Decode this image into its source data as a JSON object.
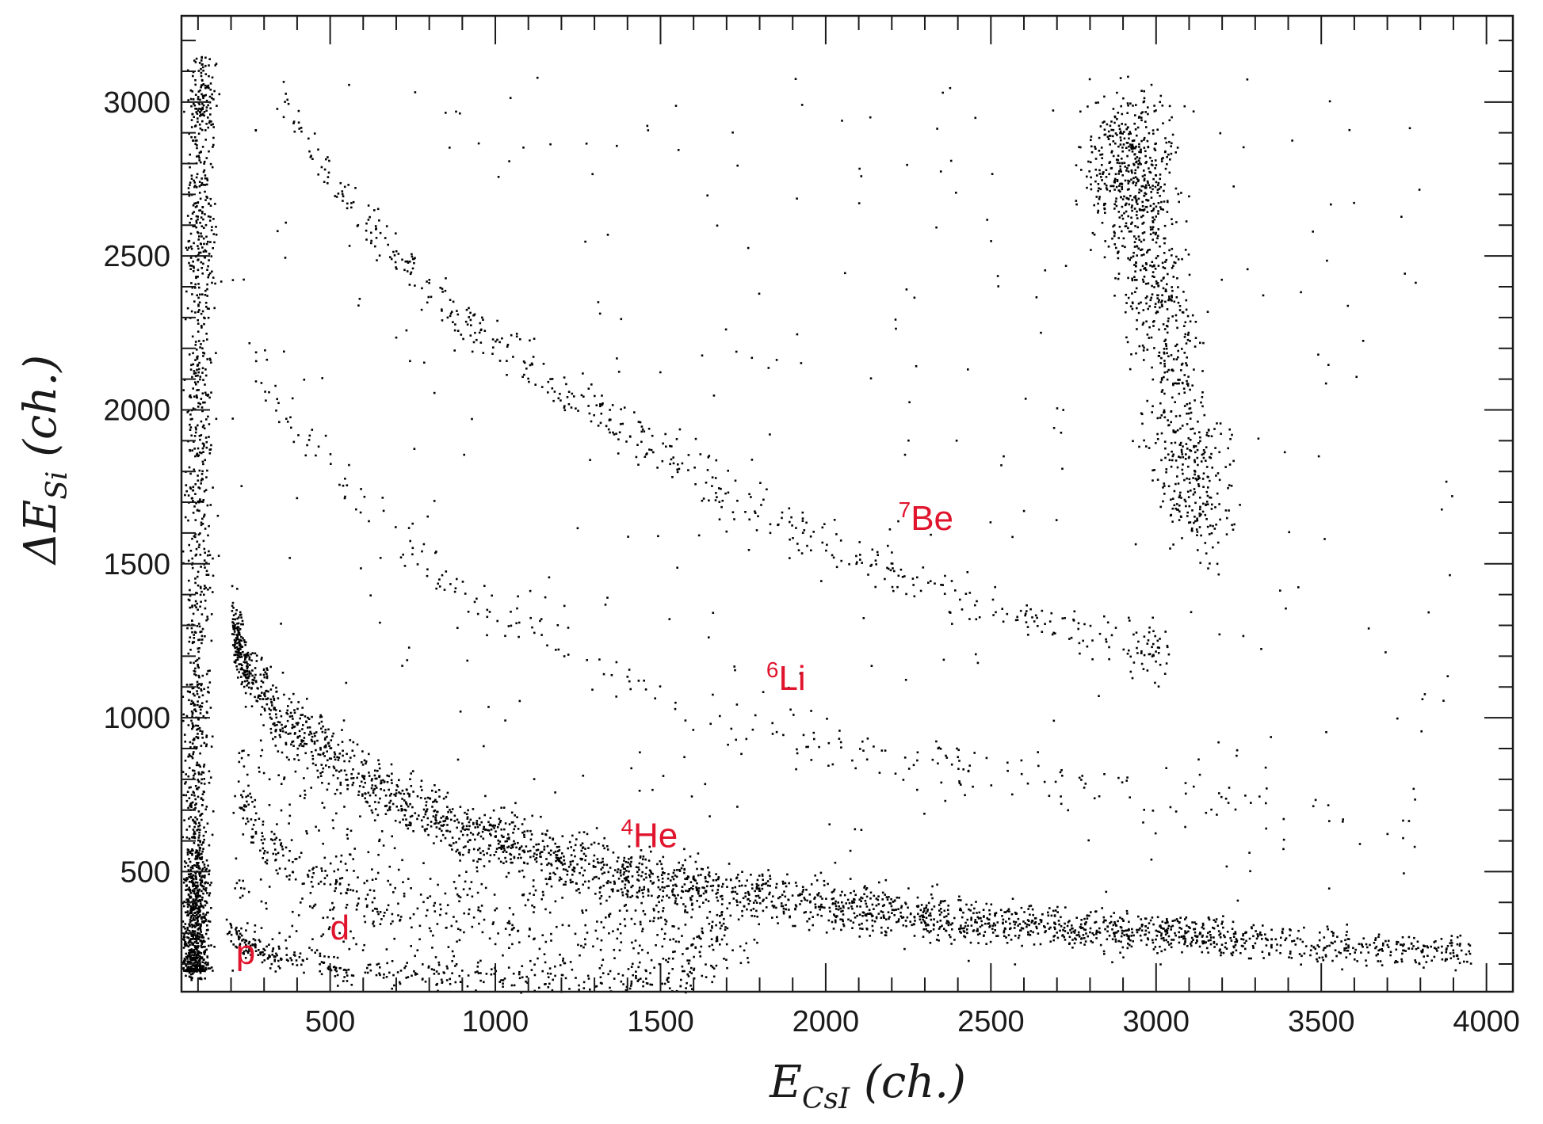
{
  "chart_data": {
    "type": "scatter",
    "title": "",
    "xlabel": {
      "main": "E",
      "sub": "CsI",
      "unit": " (ch.)"
    },
    "ylabel": {
      "main": "ΔE",
      "sub": "Si",
      "unit": " (ch.)"
    },
    "xlim": [
      50,
      4080
    ],
    "ylim": [
      110,
      3280
    ],
    "x_ticks": [
      500,
      1000,
      1500,
      2000,
      2500,
      3000,
      3500,
      4000
    ],
    "y_ticks": [
      500,
      1000,
      1500,
      2000,
      2500,
      3000
    ],
    "grid": false,
    "legend": "none",
    "marker_color": "#000000",
    "annotation_color": "#e0142d",
    "annotations": [
      {
        "text": "p",
        "x": 215,
        "y": 200
      },
      {
        "text": "d",
        "x": 500,
        "y": 280
      },
      {
        "mass": "4",
        "text": "He",
        "x": 1380,
        "y": 580
      },
      {
        "mass": "6",
        "text": "Li",
        "x": 1820,
        "y": 1090
      },
      {
        "mass": "7",
        "text": "Be",
        "x": 2220,
        "y": 1610
      }
    ],
    "bands": [
      {
        "name_ref": "edge_strip",
        "points": [
          [
            90,
            180
          ],
          [
            90,
            500
          ],
          [
            95,
            1000
          ],
          [
            100,
            1500
          ],
          [
            100,
            2000
          ],
          [
            105,
            2500
          ],
          [
            105,
            2900
          ],
          [
            110,
            3150
          ]
        ]
      },
      {
        "name_ref": "p",
        "points": [
          [
            180,
            320
          ],
          [
            250,
            260
          ],
          [
            350,
            220
          ],
          [
            500,
            190
          ],
          [
            700,
            170
          ],
          [
            1000,
            155
          ],
          [
            1300,
            148
          ],
          [
            1600,
            144
          ]
        ]
      },
      {
        "name_ref": "d",
        "points": [
          [
            220,
            750
          ],
          [
            300,
            600
          ],
          [
            450,
            480
          ],
          [
            700,
            380
          ],
          [
            1000,
            320
          ],
          [
            1400,
            270
          ],
          [
            1800,
            240
          ]
        ]
      },
      {
        "name_ref": "4He",
        "points": [
          [
            200,
            1300
          ],
          [
            250,
            1150
          ],
          [
            350,
            1000
          ],
          [
            500,
            870
          ],
          [
            700,
            750
          ],
          [
            900,
            650
          ],
          [
            1100,
            580
          ],
          [
            1300,
            520
          ],
          [
            1500,
            470
          ],
          [
            1700,
            440
          ],
          [
            1900,
            410
          ],
          [
            2100,
            380
          ],
          [
            2300,
            360
          ],
          [
            2500,
            340
          ],
          [
            2700,
            325
          ],
          [
            2900,
            310
          ],
          [
            3100,
            295
          ],
          [
            3300,
            280
          ],
          [
            3600,
            260
          ],
          [
            3950,
            240
          ]
        ]
      },
      {
        "name_ref": "6Li",
        "points": [
          [
            250,
            2200
          ],
          [
            350,
            2000
          ],
          [
            500,
            1800
          ],
          [
            700,
            1600
          ],
          [
            900,
            1420
          ],
          [
            1100,
            1280
          ],
          [
            1300,
            1160
          ],
          [
            1500,
            1080
          ],
          [
            1700,
            1000
          ],
          [
            1900,
            940
          ],
          [
            2100,
            900
          ],
          [
            2300,
            860
          ],
          [
            2500,
            830
          ],
          [
            2800,
            790
          ],
          [
            3100,
            750
          ],
          [
            3400,
            710
          ],
          [
            3800,
            640
          ]
        ]
      },
      {
        "name_ref": "7Be",
        "points": [
          [
            350,
            3000
          ],
          [
            500,
            2750
          ],
          [
            700,
            2500
          ],
          [
            900,
            2300
          ],
          [
            1100,
            2150
          ],
          [
            1300,
            2000
          ],
          [
            1500,
            1870
          ],
          [
            1700,
            1740
          ],
          [
            1900,
            1620
          ],
          [
            2100,
            1520
          ],
          [
            2300,
            1440
          ],
          [
            2500,
            1370
          ],
          [
            2700,
            1300
          ],
          [
            2900,
            1250
          ],
          [
            3050,
            1200
          ]
        ]
      },
      {
        "name_ref": "cluster",
        "points": [
          [
            2900,
            2850
          ],
          [
            2950,
            2600
          ],
          [
            3000,
            2400
          ],
          [
            3050,
            2100
          ],
          [
            3100,
            1800
          ],
          [
            3150,
            1650
          ]
        ]
      }
    ],
    "point_counts": {
      "edge_strip": 1400,
      "p": 320,
      "d": 260,
      "4He": 2600,
      "6Li": 260,
      "7Be": 520,
      "cluster": 780,
      "background": 380
    }
  }
}
